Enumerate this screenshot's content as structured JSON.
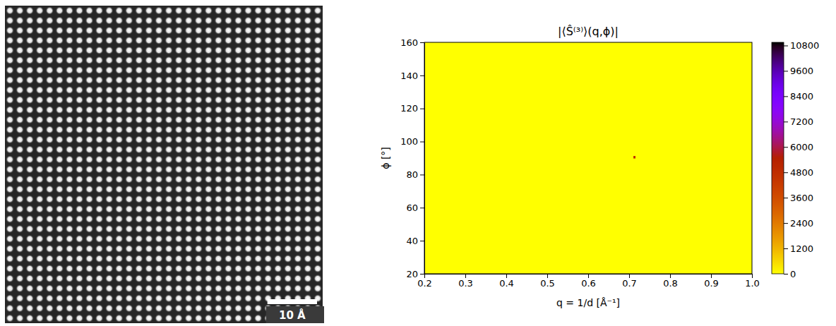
{
  "chart_data": [
    {
      "type": "image",
      "scale_bar_label": "10 Å",
      "scale_bar_length": 10,
      "field_of_view": 64,
      "lattice_spacing": 2.0
    },
    {
      "type": "heatmap",
      "title": "|⟨Ŝ⁽³⁾⟩(q,ϕ)|",
      "x_label": "q = 1/d [Å⁻¹]",
      "y_label": "ϕ [°]",
      "xlim": [
        0.2,
        1.0
      ],
      "ylim": [
        20,
        160
      ],
      "xticks": [
        0.2,
        0.3,
        0.4,
        0.5,
        0.6,
        0.7,
        0.8,
        0.9,
        {
          "value": 1,
          "label": "1.0"
        }
      ],
      "yticks": [
        20,
        40,
        60,
        80,
        100,
        120,
        140,
        160
      ],
      "background": 0,
      "cells": [
        {
          "q": 0.713,
          "phi": 90.5,
          "value": 5000
        }
      ],
      "q_step": 0.005,
      "phi_step": 1.5,
      "colorbar": {
        "range": [
          0,
          10950
        ],
        "ticks": [
          0,
          1200,
          2400,
          3600,
          4800,
          6000,
          7200,
          8400,
          9600,
          10800
        ]
      }
    }
  ]
}
